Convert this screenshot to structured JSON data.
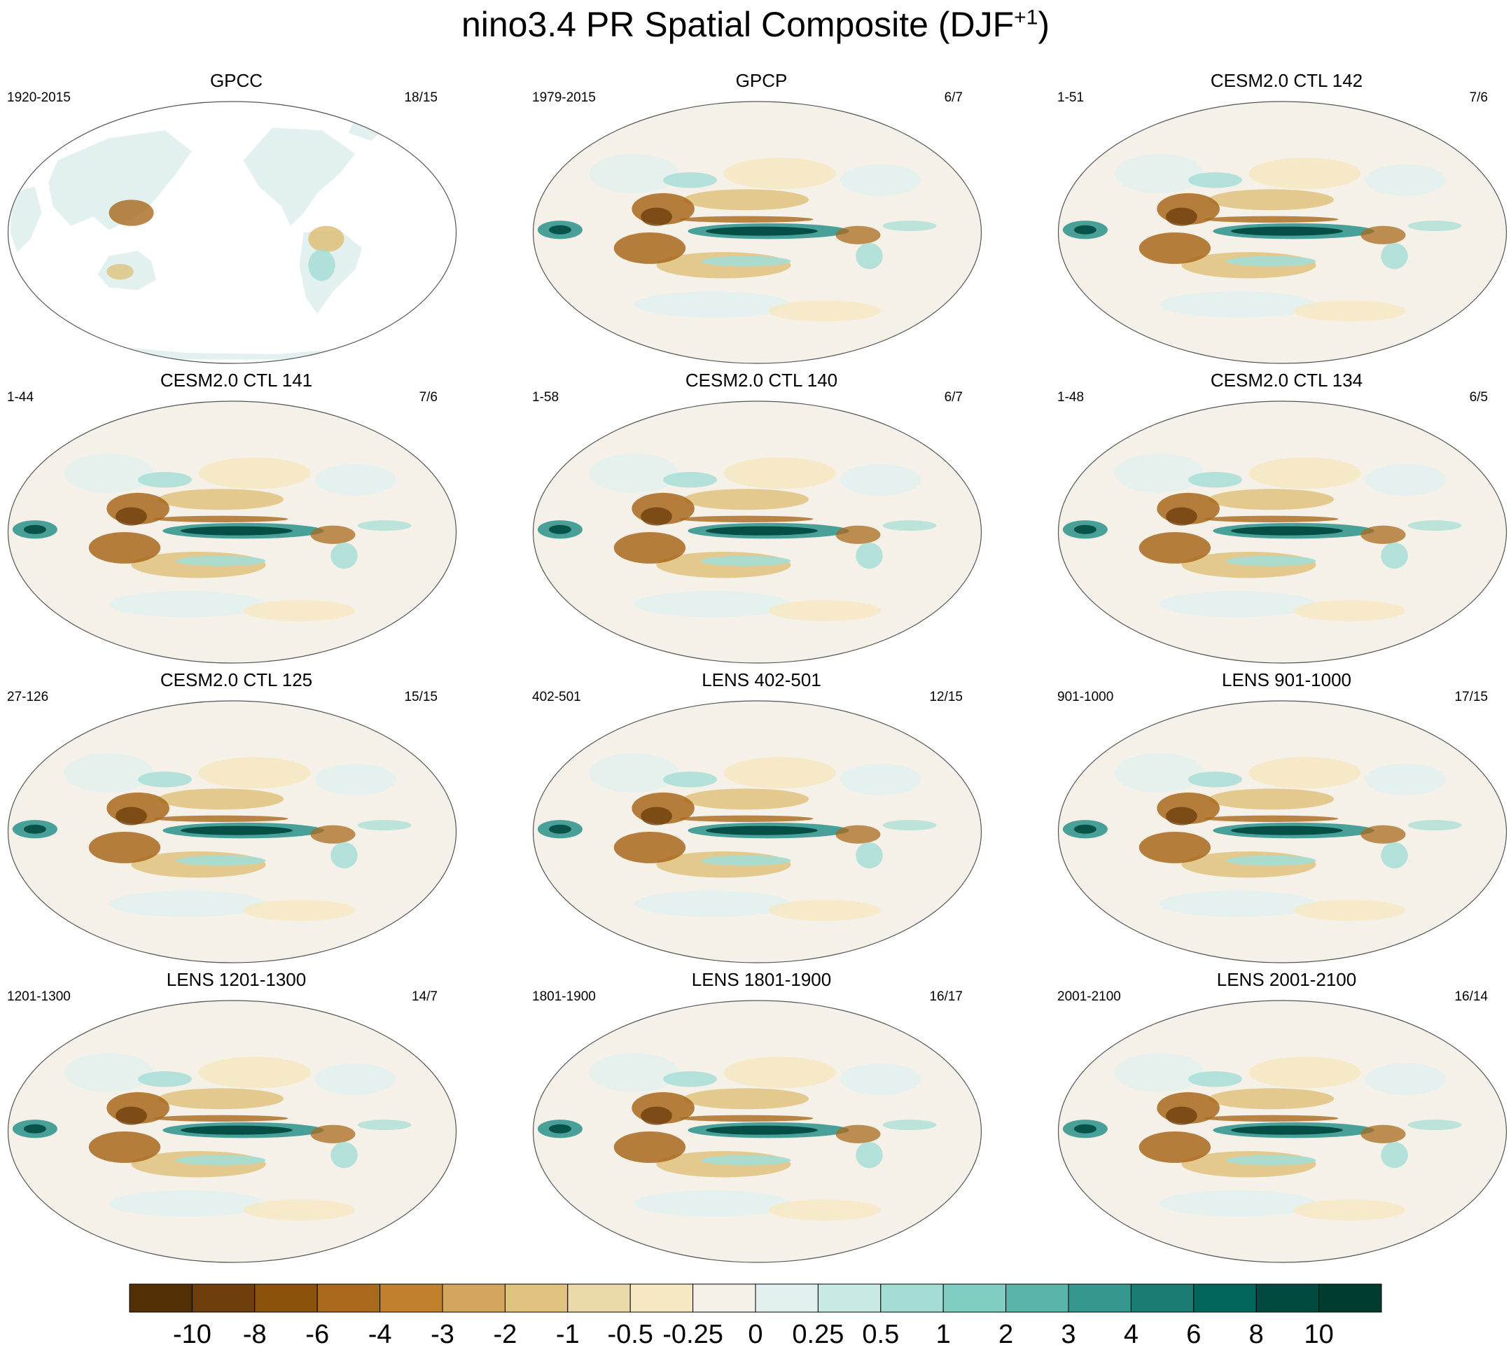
{
  "figure": {
    "title_main": "nino3.4 PR Spatial Composite (DJF",
    "title_sup": "+1",
    "title_close": ")"
  },
  "chart_data": {
    "type": "heatmap",
    "projection": "global map",
    "panels": [
      {
        "name": "GPCC",
        "period": "1920-2015",
        "count": "18/15",
        "land_only": true
      },
      {
        "name": "GPCP",
        "period": "1979-2015",
        "count": "6/7",
        "land_only": false
      },
      {
        "name": "CESM2.0 CTL 142",
        "period": "1-51",
        "count": "7/6",
        "land_only": false
      },
      {
        "name": "CESM2.0 CTL 141",
        "period": "1-44",
        "count": "7/6",
        "land_only": false
      },
      {
        "name": "CESM2.0 CTL 140",
        "period": "1-58",
        "count": "6/7",
        "land_only": false
      },
      {
        "name": "CESM2.0 CTL 134",
        "period": "1-48",
        "count": "6/5",
        "land_only": false
      },
      {
        "name": "CESM2.0 CTL 125",
        "period": "27-126",
        "count": "15/15",
        "land_only": false
      },
      {
        "name": "LENS 402-501",
        "period": "402-501",
        "count": "12/15",
        "land_only": false
      },
      {
        "name": "LENS 901-1000",
        "period": "901-1000",
        "count": "17/15",
        "land_only": false
      },
      {
        "name": "LENS 1201-1300",
        "period": "1201-1300",
        "count": "14/7",
        "land_only": false
      },
      {
        "name": "LENS 1801-1900",
        "period": "1801-1900",
        "count": "16/17",
        "land_only": false
      },
      {
        "name": "LENS 2001-2100",
        "period": "2001-2100",
        "count": "16/14",
        "land_only": false
      }
    ],
    "colorbar": {
      "labels": [
        "-10",
        "-8",
        "-6",
        "-4",
        "-3",
        "-2",
        "-1",
        "-0.5",
        "-0.25",
        "0",
        "0.25",
        "0.5",
        "1",
        "2",
        "3",
        "4",
        "6",
        "8",
        "10"
      ],
      "colors": [
        "#543005",
        "#6e3f0c",
        "#8c510a",
        "#a9691d",
        "#bf812d",
        "#d3a55f",
        "#dfc27d",
        "#ecd9a9",
        "#f6e8c3",
        "#f5f1e8",
        "#e2f1ef",
        "#c7eae5",
        "#a3ddd4",
        "#80cdc1",
        "#5ab4a8",
        "#35978f",
        "#1a7c73",
        "#01665e",
        "#014a40",
        "#003c30"
      ]
    },
    "colors": {
      "land_outline": "#7f7f7f",
      "map_border": "#555555"
    }
  }
}
